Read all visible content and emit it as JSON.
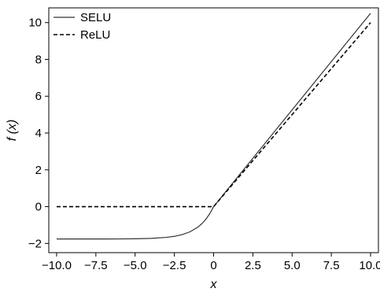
{
  "chart_data": {
    "type": "line",
    "title": "",
    "xlabel": "x",
    "ylabel": "f (x)",
    "xlim": [
      -10.5,
      10.5
    ],
    "ylim": [
      -2.5,
      10.8
    ],
    "x_ticks": [
      -10.0,
      -7.5,
      -5.0,
      -2.5,
      0,
      2.5,
      5.0,
      7.5,
      10.0
    ],
    "x_tick_labels": [
      "−10.0",
      "−7.5",
      "−5.0",
      "−2.5",
      "0",
      "2.5",
      "5.0",
      "7.5",
      "10.0"
    ],
    "y_ticks": [
      -2,
      0,
      2,
      4,
      6,
      8,
      10
    ],
    "y_tick_labels": [
      "−2",
      "0",
      "2",
      "4",
      "6",
      "8",
      "10"
    ],
    "grid": false,
    "legend_position": "top-left",
    "series": [
      {
        "name": "SELU",
        "style": "solid",
        "color": "#333333",
        "x": [
          -10,
          -9,
          -8,
          -7,
          -6,
          -5,
          -4,
          -3,
          -2.5,
          -2,
          -1.5,
          -1,
          -0.75,
          -0.5,
          -0.25,
          0,
          2.5,
          5,
          7.5,
          10
        ],
        "y": [
          -1.758,
          -1.758,
          -1.757,
          -1.756,
          -1.754,
          -1.746,
          -1.726,
          -1.67,
          -1.614,
          -1.52,
          -1.367,
          -1.111,
          -0.928,
          -0.692,
          -0.389,
          0,
          2.627,
          5.254,
          7.88,
          10.507
        ]
      },
      {
        "name": "ReLU",
        "style": "dashed",
        "color": "#000000",
        "x": [
          -10,
          0,
          10
        ],
        "y": [
          0,
          0,
          10
        ]
      }
    ]
  }
}
